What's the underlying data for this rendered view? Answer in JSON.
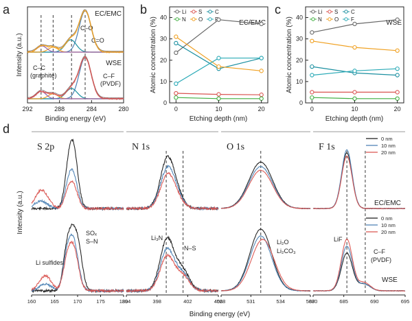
{
  "panel_labels": {
    "a": "a",
    "b": "b",
    "c": "c",
    "d": "d"
  },
  "colors": {
    "black": "#1a1a1a",
    "blue": "#4a7fb3",
    "red": "#d9534f",
    "gray": "#777777",
    "orange": "#f0a020",
    "teal": "#1a8fa0",
    "green": "#3fae3f",
    "purple": "#9060b0",
    "cyan": "#28a9b6"
  },
  "chart_data": [
    {
      "id": "a",
      "type": "line",
      "xlabel": "Binding energy (eV)",
      "ylabel": "Intensity (a.u.)",
      "xlim": [
        292,
        280
      ],
      "xticks": [
        280,
        284,
        288,
        292
      ],
      "labels": {
        "top": "EC/EMC",
        "bottom": "WSE",
        "co": "C–O",
        "ceo": "C=O",
        "cc": "C–C",
        "graphite": "(graphite)",
        "cf": "C–F",
        "pvdf": "(PVDF)"
      },
      "dashed_lines": [
        284.8,
        286.5,
        288.8,
        290.3
      ],
      "spectra": [
        {
          "name": "EC/EMC",
          "peaks": [
            [
              284.8,
              1.0,
              0.75
            ],
            [
              286.6,
              0.3,
              0.7
            ],
            [
              288.8,
              0.12,
              0.6
            ],
            [
              290.2,
              0.15,
              0.6
            ]
          ]
        },
        {
          "name": "WSE",
          "peaks": [
            [
              284.8,
              1.0,
              0.75
            ],
            [
              286.5,
              0.25,
              0.7
            ],
            [
              288.8,
              0.12,
              0.6
            ],
            [
              290.3,
              0.18,
              0.6
            ]
          ]
        }
      ]
    },
    {
      "id": "b",
      "type": "line",
      "title": "EC/EMC",
      "xlabel": "Etching depth (nm)",
      "ylabel": "Atomic concentration (%)",
      "x": [
        0,
        10,
        20
      ],
      "xlim": [
        -1.5,
        21.5
      ],
      "ylim": [
        0,
        45
      ],
      "yticks": [
        0,
        10,
        20,
        30,
        40
      ],
      "series": [
        {
          "name": "Li",
          "values": [
            23.5,
            39,
            37
          ]
        },
        {
          "name": "S",
          "values": [
            4.5,
            4,
            3.8
          ]
        },
        {
          "name": "C",
          "values": [
            28,
            16,
            21
          ]
        },
        {
          "name": "N",
          "values": [
            2.5,
            2,
            2
          ]
        },
        {
          "name": "O",
          "values": [
            31,
            17,
            15
          ]
        },
        {
          "name": "F",
          "values": [
            9,
            21,
            21
          ]
        }
      ]
    },
    {
      "id": "c",
      "type": "line",
      "title": "WSE",
      "xlabel": "Etching depth (nm)",
      "ylabel": "Atomic concentration (%)",
      "x": [
        0,
        10,
        20
      ],
      "xlim": [
        -1.5,
        21.5
      ],
      "ylim": [
        0,
        45
      ],
      "yticks": [
        0,
        10,
        20,
        30,
        40
      ],
      "series": [
        {
          "name": "Li",
          "values": [
            33,
            37,
            39
          ]
        },
        {
          "name": "S",
          "values": [
            5,
            5,
            5
          ]
        },
        {
          "name": "C",
          "values": [
            17,
            14,
            13
          ]
        },
        {
          "name": "N",
          "values": [
            2.5,
            2,
            2
          ]
        },
        {
          "name": "O",
          "values": [
            29,
            26,
            24.5
          ]
        },
        {
          "name": "F",
          "values": [
            13,
            15,
            16
          ]
        }
      ]
    },
    {
      "id": "d",
      "type": "line",
      "xlabel": "Binding energy (eV)",
      "ylabel": "Intensity (a.u.)",
      "legend": [
        "0 nm",
        "10 nm",
        "20 nm"
      ],
      "labels": {
        "ecemc": "EC/EMC",
        "wse": "WSE",
        "lif": "LiF",
        "cf": "C–F",
        "pvdf": "(PVDF)",
        "li2o": "Li₂O",
        "li2co3": "Li₂CO₃",
        "li3n": "Li₃N",
        "ns": "N–S",
        "sox": "SOₓ",
        "sn": "S–N",
        "lisulf": "Li sulfides"
      },
      "panels": [
        {
          "title": "S 2p",
          "xlim": [
            160,
            180
          ],
          "xticks": [
            160,
            165,
            170,
            175,
            180
          ],
          "dashed": [],
          "top": [
            [
              [
                169,
                1.0,
                1.0
              ],
              [
                167.8,
                0.3,
                0.8
              ]
            ],
            [
              [
                169,
                0.55,
                1.0
              ],
              [
                167.8,
                0.2,
                0.8
              ],
              [
                162,
                0.12,
                1.4
              ]
            ],
            [
              [
                169,
                0.38,
                1.0
              ],
              [
                167.8,
                0.15,
                0.8
              ],
              [
                162.2,
                0.3,
                1.4
              ]
            ]
          ],
          "bottom": [
            [
              [
                169,
                0.85,
                1.1
              ],
              [
                167.5,
                0.35,
                0.8
              ],
              [
                170.5,
                0.3,
                0.8
              ]
            ],
            [
              [
                169,
                0.75,
                1.1
              ],
              [
                167.5,
                0.3,
                0.8
              ],
              [
                163,
                0.1,
                1.3
              ]
            ],
            [
              [
                169,
                0.65,
                1.1
              ],
              [
                167.5,
                0.25,
                0.8
              ],
              [
                163,
                0.22,
                1.3
              ]
            ]
          ]
        },
        {
          "title": "N 1s",
          "xlim": [
            394,
            406
          ],
          "xticks": [
            394,
            398,
            402,
            406
          ],
          "dashed": [
            399.2,
            401.4
          ],
          "top": [
            [
              [
                399.3,
                0.75,
                0.9
              ],
              [
                400.5,
                0.2,
                0.9
              ]
            ],
            [
              [
                399.3,
                0.6,
                0.9
              ],
              [
                400.5,
                0.18,
                0.9
              ]
            ],
            [
              [
                399.3,
                0.5,
                0.9
              ],
              [
                400.5,
                0.15,
                0.9
              ]
            ]
          ],
          "bottom": [
            [
              [
                399.3,
                0.75,
                0.9
              ],
              [
                401.3,
                0.3,
                0.9
              ]
            ],
            [
              [
                399.3,
                0.6,
                0.9
              ],
              [
                401.3,
                0.25,
                0.9
              ]
            ],
            [
              [
                399.3,
                0.5,
                0.9
              ],
              [
                401.3,
                0.22,
                0.9
              ]
            ]
          ]
        },
        {
          "title": "O 1s",
          "xlim": [
            528,
            537
          ],
          "xticks": [
            528,
            531,
            534,
            537
          ],
          "dashed": [
            532
          ],
          "top": [
            [
              [
                532,
                0.75,
                1.2
              ]
            ],
            [
              [
                532,
                0.68,
                1.2
              ]
            ],
            [
              [
                532,
                0.62,
                1.2
              ]
            ]
          ],
          "bottom": [
            [
              [
                532,
                0.9,
                1.1
              ]
            ],
            [
              [
                532,
                0.8,
                1.1
              ]
            ],
            [
              [
                532.2,
                0.75,
                1.15
              ]
            ]
          ]
        },
        {
          "title": "F 1s",
          "xlim": [
            680,
            695
          ],
          "xticks": [
            680,
            685,
            690,
            695
          ],
          "dashed": [
            685.5,
            688.5
          ],
          "top": [
            [
              [
                685.5,
                0.9,
                0.85
              ]
            ],
            [
              [
                685.5,
                0.95,
                0.85
              ]
            ],
            [
              [
                685.5,
                0.85,
                0.85
              ]
            ]
          ],
          "bottom": [
            [
              [
                685.5,
                0.55,
                0.9
              ],
              [
                688.3,
                0.1,
                1.0
              ]
            ],
            [
              [
                685.5,
                0.65,
                0.9
              ],
              [
                688.3,
                0.1,
                1.0
              ]
            ],
            [
              [
                685.5,
                0.75,
                0.9
              ],
              [
                688.3,
                0.12,
                1.0
              ]
            ]
          ]
        }
      ]
    }
  ]
}
